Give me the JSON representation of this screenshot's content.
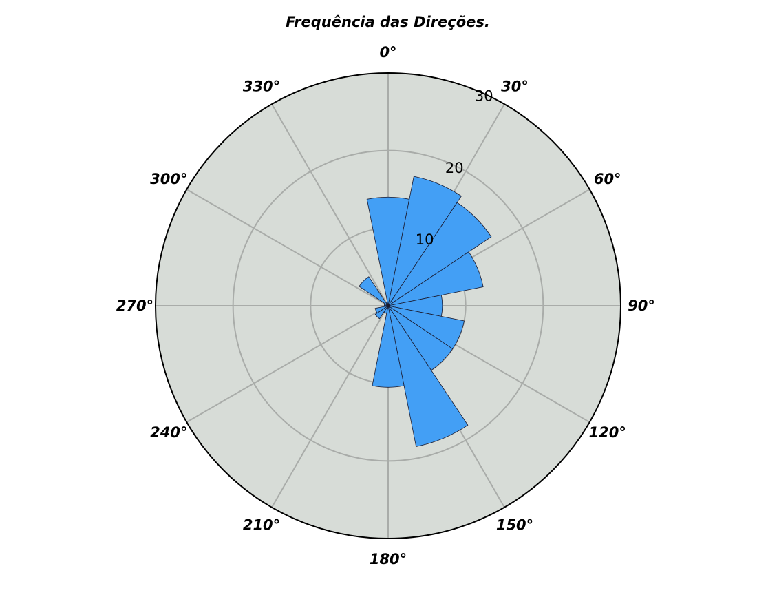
{
  "chart_data": {
    "type": "polar-bar",
    "title": "Frequência das Direções.",
    "theta_direction": "clockwise",
    "theta_zero": "north",
    "bin_width_deg": 22.5,
    "bins": [
      {
        "center_deg": 0,
        "value": 14
      },
      {
        "center_deg": 22.5,
        "value": 17
      },
      {
        "center_deg": 45,
        "value": 16
      },
      {
        "center_deg": 67.5,
        "value": 12.5
      },
      {
        "center_deg": 90,
        "value": 7
      },
      {
        "center_deg": 112.5,
        "value": 10
      },
      {
        "center_deg": 135,
        "value": 10
      },
      {
        "center_deg": 157.5,
        "value": 18.5
      },
      {
        "center_deg": 180,
        "value": 10.5
      },
      {
        "center_deg": 202.5,
        "value": 1
      },
      {
        "center_deg": 225,
        "value": 2
      },
      {
        "center_deg": 247.5,
        "value": 1.7
      },
      {
        "center_deg": 270,
        "value": 0.5
      },
      {
        "center_deg": 292.5,
        "value": 0.5
      },
      {
        "center_deg": 315,
        "value": 4.5
      },
      {
        "center_deg": 337.5,
        "value": 0.5
      }
    ],
    "angle_ticks": [
      "0°",
      "30°",
      "60°",
      "90°",
      "120°",
      "150°",
      "180°",
      "210°",
      "240°",
      "270°",
      "300°",
      "330°"
    ],
    "radial_ticks": [
      10,
      20,
      30
    ],
    "rlim": [
      0,
      30
    ],
    "grid": true,
    "colors": {
      "bar": "#439ff5",
      "bar_edge": "#1a1a2e",
      "background": "#d7dcd7",
      "grid": "#a9aca9",
      "frame": "#000000"
    }
  }
}
